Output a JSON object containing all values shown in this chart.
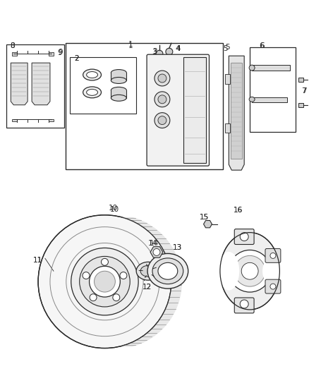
{
  "bg_color": "#ffffff",
  "line_color": "#2a2a2a",
  "figsize": [
    4.38,
    5.33
  ],
  "dpi": 100
}
